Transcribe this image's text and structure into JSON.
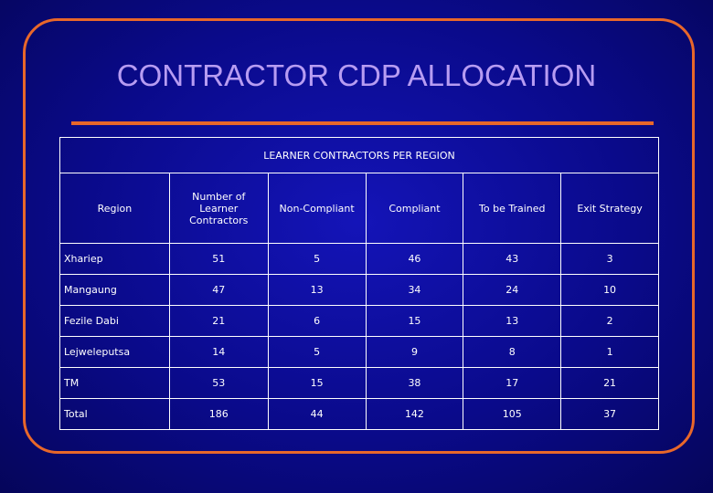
{
  "title": "CONTRACTOR CDP ALLOCATION",
  "table": {
    "caption": "LEARNER CONTRACTORS PER REGION",
    "header": [
      "Region",
      "Number of Learner Contractors",
      "Non-Compliant",
      "Compliant",
      "To be Trained",
      "Exit Strategy"
    ],
    "rows": [
      [
        "Xhariep",
        51,
        5,
        46,
        43,
        3
      ],
      [
        "Mangaung",
        47,
        13,
        34,
        24,
        10
      ],
      [
        "Fezile Dabi",
        21,
        6,
        15,
        13,
        2
      ],
      [
        "Lejweleputsa",
        14,
        5,
        9,
        8,
        1
      ],
      [
        "TM",
        53,
        15,
        38,
        17,
        21
      ],
      [
        "Total",
        186,
        44,
        142,
        105,
        37
      ]
    ]
  }
}
